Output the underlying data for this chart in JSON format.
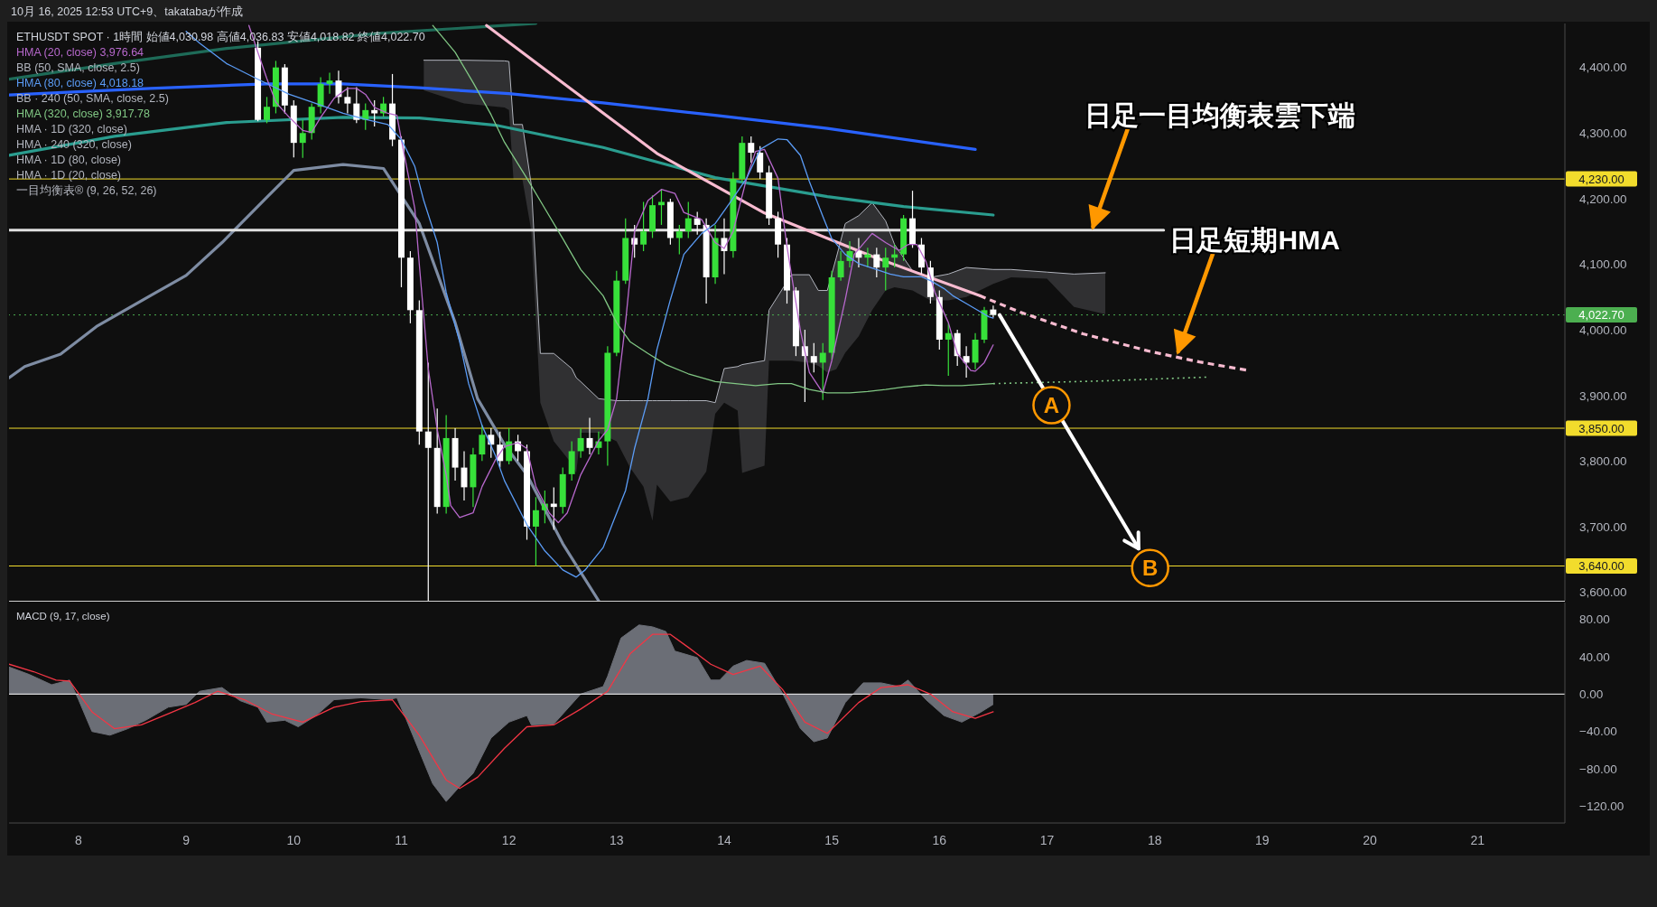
{
  "chart_data": [
    {
      "type": "candlestick",
      "title": "ETHUSDT SPOT · 1時間 始値4,030.98 高値4,036.83 安値4,018.82 終値4,022.70",
      "x": [
        "2025-10-09T16:00",
        "2025-10-09T18:00",
        "2025-10-09T20:00",
        "2025-10-09T22:00",
        "2025-10-10T00:00",
        "2025-10-10T02:00",
        "2025-10-10T04:00",
        "2025-10-10T06:00",
        "2025-10-10T08:00",
        "2025-10-10T10:00",
        "2025-10-10T12:00",
        "2025-10-10T14:00",
        "2025-10-10T16:00",
        "2025-10-10T18:00",
        "2025-10-10T20:00",
        "2025-10-10T22:00",
        "2025-10-11T00:00",
        "2025-10-11T02:00",
        "2025-10-11T04:00",
        "2025-10-11T06:00",
        "2025-10-11T08:00",
        "2025-10-11T10:00",
        "2025-10-11T12:00",
        "2025-10-11T14:00",
        "2025-10-11T16:00",
        "2025-10-11T18:00",
        "2025-10-11T20:00",
        "2025-10-11T22:00",
        "2025-10-12T00:00",
        "2025-10-12T02:00",
        "2025-10-12T04:00",
        "2025-10-12T06:00",
        "2025-10-12T08:00",
        "2025-10-12T10:00",
        "2025-10-12T12:00",
        "2025-10-12T14:00",
        "2025-10-12T16:00",
        "2025-10-12T18:00",
        "2025-10-12T20:00",
        "2025-10-12T22:00",
        "2025-10-13T00:00",
        "2025-10-13T02:00",
        "2025-10-13T04:00",
        "2025-10-13T06:00",
        "2025-10-13T08:00",
        "2025-10-13T10:00",
        "2025-10-13T12:00",
        "2025-10-13T14:00",
        "2025-10-13T16:00",
        "2025-10-13T18:00",
        "2025-10-13T20:00",
        "2025-10-13T22:00",
        "2025-10-14T00:00",
        "2025-10-14T02:00",
        "2025-10-14T04:00",
        "2025-10-14T06:00",
        "2025-10-14T08:00",
        "2025-10-14T10:00",
        "2025-10-14T12:00",
        "2025-10-14T14:00",
        "2025-10-14T16:00",
        "2025-10-14T18:00",
        "2025-10-14T20:00",
        "2025-10-14T22:00",
        "2025-10-15T00:00",
        "2025-10-15T02:00",
        "2025-10-15T04:00",
        "2025-10-15T06:00",
        "2025-10-15T08:00",
        "2025-10-15T10:00",
        "2025-10-15T12:00",
        "2025-10-15T14:00",
        "2025-10-15T16:00",
        "2025-10-15T18:00",
        "2025-10-15T20:00",
        "2025-10-15T22:00",
        "2025-10-16T00:00",
        "2025-10-16T02:00",
        "2025-10-16T04:00",
        "2025-10-16T06:00",
        "2025-10-16T08:00",
        "2025-10-16T10:00",
        "2025-10-16T12:00"
      ],
      "ohlc": [
        [
          4430,
          4440,
          4318,
          4320
        ],
        [
          4320,
          4355,
          4315,
          4340
        ],
        [
          4340,
          4410,
          4330,
          4400
        ],
        [
          4400,
          4405,
          4330,
          4342
        ],
        [
          4342,
          4350,
          4263,
          4285
        ],
        [
          4285,
          4320,
          4262,
          4300
        ],
        [
          4300,
          4345,
          4290,
          4340
        ],
        [
          4340,
          4385,
          4330,
          4375
        ],
        [
          4375,
          4392,
          4360,
          4380
        ],
        [
          4380,
          4395,
          4345,
          4355
        ],
        [
          4355,
          4370,
          4330,
          4345
        ],
        [
          4345,
          4370,
          4315,
          4320
        ],
        [
          4320,
          4345,
          4305,
          4335
        ],
        [
          4335,
          4350,
          4310,
          4330
        ],
        [
          4330,
          4355,
          4325,
          4345
        ],
        [
          4345,
          4390,
          4280,
          4290
        ],
        [
          4290,
          4295,
          4065,
          4110
        ],
        [
          4110,
          4120,
          4010,
          4030
        ],
        [
          4030,
          4045,
          3825,
          3845
        ],
        [
          3845,
          3950,
          3587,
          3820
        ],
        [
          3820,
          3880,
          3720,
          3730
        ],
        [
          3730,
          3870,
          3720,
          3835
        ],
        [
          3835,
          3850,
          3770,
          3790
        ],
        [
          3790,
          3815,
          3740,
          3760
        ],
        [
          3760,
          3820,
          3730,
          3810
        ],
        [
          3810,
          3855,
          3800,
          3840
        ],
        [
          3840,
          3850,
          3805,
          3825
        ],
        [
          3825,
          3845,
          3790,
          3800
        ],
        [
          3800,
          3850,
          3795,
          3830
        ],
        [
          3830,
          3840,
          3800,
          3815
        ],
        [
          3815,
          3825,
          3680,
          3700
        ],
        [
          3700,
          3745,
          3640,
          3725
        ],
        [
          3725,
          3755,
          3705,
          3735
        ],
        [
          3735,
          3760,
          3695,
          3730
        ],
        [
          3730,
          3790,
          3720,
          3780
        ],
        [
          3780,
          3830,
          3770,
          3815
        ],
        [
          3815,
          3850,
          3805,
          3835
        ],
        [
          3835,
          3866,
          3810,
          3820
        ],
        [
          3820,
          3845,
          3810,
          3830
        ],
        [
          3830,
          3975,
          3793,
          3965
        ],
        [
          3965,
          4090,
          3960,
          4075
        ],
        [
          4075,
          4170,
          4070,
          4140
        ],
        [
          4140,
          4160,
          4110,
          4130
        ],
        [
          4130,
          4195,
          4120,
          4150
        ],
        [
          4150,
          4205,
          4140,
          4190
        ],
        [
          4190,
          4215,
          4160,
          4195
        ],
        [
          4195,
          4200,
          4130,
          4140
        ],
        [
          4140,
          4160,
          4115,
          4150
        ],
        [
          4150,
          4195,
          4140,
          4170
        ],
        [
          4170,
          4180,
          4145,
          4160
        ],
        [
          4160,
          4170,
          4040,
          4080
        ],
        [
          4080,
          4160,
          4070,
          4140
        ],
        [
          4140,
          4170,
          4085,
          4120
        ],
        [
          4120,
          4240,
          4110,
          4230
        ],
        [
          4230,
          4295,
          4225,
          4285
        ],
        [
          4285,
          4295,
          4255,
          4270
        ],
        [
          4270,
          4280,
          4230,
          4240
        ],
        [
          4240,
          4250,
          4160,
          4170
        ],
        [
          4170,
          4180,
          4110,
          4130
        ],
        [
          4130,
          4140,
          4040,
          4060
        ],
        [
          4060,
          4065,
          3960,
          3975
        ],
        [
          3975,
          4000,
          3890,
          3960
        ],
        [
          3960,
          3980,
          3935,
          3950
        ],
        [
          3950,
          3980,
          3893,
          3965
        ],
        [
          3965,
          4090,
          3955,
          4080
        ],
        [
          4080,
          4120,
          4075,
          4105
        ],
        [
          4105,
          4135,
          4095,
          4120
        ],
        [
          4120,
          4140,
          4095,
          4110
        ],
        [
          4110,
          4125,
          4095,
          4115
        ],
        [
          4115,
          4125,
          4080,
          4095
        ],
        [
          4095,
          4125,
          4060,
          4110
        ],
        [
          4110,
          4130,
          4095,
          4115
        ],
        [
          4115,
          4175,
          4105,
          4170
        ],
        [
          4170,
          4212,
          4125,
          4130
        ],
        [
          4130,
          4140,
          4085,
          4095
        ],
        [
          4095,
          4105,
          4040,
          4050
        ],
        [
          4050,
          4060,
          3970,
          3985
        ],
        [
          3985,
          4010,
          3930,
          3995
        ],
        [
          3995,
          4000,
          3945,
          3960
        ],
        [
          3960,
          3975,
          3927,
          3950
        ],
        [
          3950,
          3995,
          3940,
          3985
        ],
        [
          3985,
          4035,
          3980,
          4030
        ],
        [
          4030.98,
          4036.83,
          4018.82,
          4022.7
        ]
      ],
      "colors": [
        "#ffffff",
        "#37e03a",
        "#37e03a",
        "#ffffff",
        "#ffffff",
        "#37e03a",
        "#37e03a",
        "#37e03a",
        "#37e03a",
        "#ffffff",
        "#ffffff",
        "#ffffff",
        "#37e03a",
        "#ffffff",
        "#37e03a",
        "#ffffff",
        "#ffffff",
        "#ffffff",
        "#ffffff",
        "#ffffff",
        "#ffffff",
        "#37e03a",
        "#ffffff",
        "#ffffff",
        "#37e03a",
        "#37e03a",
        "#ffffff",
        "#ffffff",
        "#37e03a",
        "#ffffff",
        "#ffffff",
        "#37e03a",
        "#37e03a",
        "#ffffff",
        "#37e03a",
        "#37e03a",
        "#37e03a",
        "#ffffff",
        "#37e03a",
        "#37e03a",
        "#37e03a",
        "#37e03a",
        "#ffffff",
        "#37e03a",
        "#37e03a",
        "#37e03a",
        "#ffffff",
        "#37e03a",
        "#37e03a",
        "#ffffff",
        "#ffffff",
        "#37e03a",
        "#ffffff",
        "#37e03a",
        "#37e03a",
        "#ffffff",
        "#ffffff",
        "#ffffff",
        "#ffffff",
        "#ffffff",
        "#ffffff",
        "#ffffff",
        "#ffffff",
        "#37e03a",
        "#37e03a",
        "#37e03a",
        "#37e03a",
        "#ffffff",
        "#37e03a",
        "#ffffff",
        "#37e03a",
        "#37e03a",
        "#37e03a",
        "#ffffff",
        "#ffffff",
        "#ffffff",
        "#ffffff",
        "#37e03a",
        "#ffffff",
        "#ffffff",
        "#37e03a",
        "#37e03a",
        "#ffffff"
      ],
      "series": [
        {
          "type": "line",
          "color": "#b2b5be",
          "x": [
            "2025-10-11T05:00",
            "2025-10-11T14:00",
            "2025-10-11T23:00",
            "2025-10-12T00:00",
            "2025-10-12T01:00",
            "2025-10-12T03:00",
            "2025-10-12T05:00",
            "2025-10-12T07:00",
            "2025-10-12T10:00",
            "2025-10-12T14:00",
            "2025-10-12T15:00",
            "2025-10-12T16:00",
            "2025-10-12T20:00",
            "2025-10-13T00:00",
            "2025-10-13T03:00",
            "2025-10-13T06:00",
            "2025-10-13T08:00",
            "2025-10-13T09:00",
            "2025-10-13T12:00",
            "2025-10-13T16:00",
            "2025-10-13T20:00",
            "2025-10-13T22:00",
            "2025-10-14T00:00",
            "2025-10-14T03:00",
            "2025-10-14T04:00",
            "2025-10-14T09:00",
            "2025-10-14T10:00",
            "2025-10-14T15:00",
            "2025-10-14T19:00",
            "2025-10-14T21:00",
            "2025-10-14T23:00",
            "2025-10-15T01:00",
            "2025-10-15T03:00",
            "2025-10-15T06:00",
            "2025-10-15T09:00",
            "2025-10-15T12:00",
            "2025-10-15T14:00",
            "2025-10-15T18:00",
            "2025-10-15T22:00",
            "2025-10-16T02:00",
            "2025-10-16T06:00",
            "2025-10-16T12:00",
            "2025-10-16T16:00",
            "2025-10-17T00:00",
            "2025-10-17T06:00",
            "2025-10-17T13:00"
          ],
          "values": [
            4411,
            4411,
            4410,
            4409,
            4313,
            4313,
            4220,
            3964,
            3964,
            3941,
            3927,
            3921,
            3895,
            3892,
            3892,
            3892,
            3892,
            3892,
            3892,
            3892,
            3892,
            3889,
            3941,
            3944,
            3947,
            3953,
            4030,
            4084,
            4084,
            4060,
            4060,
            4110,
            4162,
            4174,
            4194,
            4166,
            4130,
            4090,
            4080,
            4085,
            4095,
            4092,
            4092,
            4088,
            4085,
            4087
          ],
          "lower": [
            4365,
            4345,
            4339,
            4335,
            4229,
            4229,
            4150,
            3889,
            3830,
            3796,
            3782,
            3843,
            3843,
            3830,
            3790,
            3761,
            3709,
            3764,
            3738,
            3745,
            3784,
            3872,
            3889,
            3877,
            3782,
            3793,
            3953,
            3953,
            3950,
            3945,
            3935,
            3940,
            3965,
            3990,
            4030,
            4060,
            4065,
            4060,
            4045,
            4045,
            4050,
            4070,
            4080,
            4078,
            4035,
            4024
          ],
          "upper": [
            4411,
            4411,
            4410,
            4409,
            4313,
            4313,
            4220,
            3964,
            3964,
            3941,
            3927,
            3921,
            3895,
            3892,
            3892,
            3892,
            3892,
            3892,
            3892,
            3892,
            3892,
            3889,
            3941,
            3944,
            3947,
            3953,
            4030,
            4084,
            4084,
            4060,
            4060,
            4110,
            4162,
            4174,
            4194,
            4166,
            4130,
            4090,
            4080,
            4085,
            4095,
            4092,
            4092,
            4088,
            4085,
            4087
          ]
        },
        {
          "type": "line",
          "color": "#7e8ca3",
          "x": [
            "2025-10-07T08:30",
            "2025-10-07T12:00",
            "2025-10-07T20:00",
            "2025-10-08T04:00",
            "2025-10-08T16:00",
            "2025-10-09T00:00",
            "2025-10-09T08:00",
            "2025-10-09T18:00",
            "2025-10-10T00:00",
            "2025-10-10T11:00",
            "2025-10-10T20:00",
            "2025-10-11T04:00",
            "2025-10-11T12:00",
            "2025-10-11T17:00",
            "2025-10-11T23:00",
            "2025-10-12T04:00",
            "2025-10-12T12:00",
            "2025-10-12T20:00"
          ],
          "values": [
            3927,
            3944,
            3963,
            4005,
            4052,
            4083,
            4133,
            4202,
            4243,
            4252,
            4246,
            4162,
            4011,
            3895,
            3825,
            3779,
            3674,
            3587
          ]
        },
        {
          "type": "line",
          "color": "#1e6b58",
          "x": [
            "2025-10-07T08:30",
            "2025-10-08T08:00",
            "2025-10-09T09:00",
            "2025-10-10T19:00",
            "2025-10-11T23:00",
            "2025-10-12T06:00"
          ],
          "values": [
            4382,
            4406,
            4429,
            4452,
            4464,
            4467
          ]
        },
        {
          "type": "line",
          "color": "#2962ff",
          "x": [
            "2025-10-07T08:30",
            "2025-10-08T16:00",
            "2025-10-09T18:00",
            "2025-10-10T11:00",
            "2025-10-11T04:00",
            "2025-10-12T00:00",
            "2025-10-12T21:00",
            "2025-10-13T22:00",
            "2025-10-14T23:00",
            "2025-10-16T08:00"
          ],
          "values": [
            4358,
            4368,
            4375,
            4375,
            4369,
            4360,
            4346,
            4327,
            4307,
            4275
          ]
        },
        {
          "type": "line",
          "color": "#2a9d8f",
          "x": [
            "2025-10-07T08:30",
            "2025-10-08T08:00",
            "2025-10-09T09:00",
            "2025-10-10T11:00",
            "2025-10-11T04:00",
            "2025-10-11T21:00",
            "2025-10-12T21:00",
            "2025-10-13T22:00",
            "2025-10-14T23:00",
            "2025-10-15T16:00",
            "2025-10-16T12:00"
          ],
          "values": [
            4266,
            4295,
            4316,
            4324,
            4323,
            4312,
            4278,
            4232,
            4203,
            4188,
            4175
          ]
        },
        {
          "type": "line",
          "color": "#e0e0e0",
          "x": [
            "2025-10-07T08:30",
            "2025-10-18T02:00"
          ],
          "values": [
            4152,
            4152
          ]
        },
        {
          "type": "line",
          "color": "#f8bbd0",
          "x": [
            "2025-10-11T19:00",
            "2025-10-12T09:00",
            "2025-10-13T09:00",
            "2025-10-14T09:00",
            "2025-10-15T09:00",
            "2025-10-16T09:00"
          ],
          "values": [
            4464,
            4392,
            4269,
            4178,
            4112,
            4052
          ]
        },
        {
          "type": "line",
          "color": "#f8bbd0",
          "line_style": "dashed",
          "x": [
            "2025-10-16T09:00",
            "2025-10-16T18:00",
            "2025-10-17T08:00",
            "2025-10-17T23:00",
            "2025-10-18T10:00",
            "2025-10-18T21:00"
          ],
          "values": [
            4052,
            4027,
            3994,
            3967,
            3951,
            3938
          ]
        },
        {
          "type": "line",
          "name": "HMA (20, close) 3,976.64",
          "color": "#b768cc",
          "x": [
            "2025-10-09T14:00",
            "2025-10-09T16:00",
            "2025-10-09T18:00",
            "2025-10-09T20:00",
            "2025-10-09T23:00",
            "2025-10-10T02:00",
            "2025-10-10T04:00",
            "2025-10-10T06:00",
            "2025-10-10T09:00",
            "2025-10-10T12:00",
            "2025-10-10T14:00",
            "2025-10-10T16:00",
            "2025-10-10T18:00",
            "2025-10-10T21:00",
            "2025-10-10T23:00",
            "2025-10-11T00:00",
            "2025-10-11T03:00",
            "2025-10-11T04:00",
            "2025-10-11T06:00",
            "2025-10-11T08:00",
            "2025-10-11T10:00",
            "2025-10-11T11:00",
            "2025-10-11T13:00",
            "2025-10-11T16:00",
            "2025-10-11T18:00",
            "2025-10-11T21:00",
            "2025-10-11T23:00",
            "2025-10-12T02:00",
            "2025-10-12T04:00",
            "2025-10-12T06:00",
            "2025-10-12T09:00",
            "2025-10-12T11:00",
            "2025-10-12T13:00",
            "2025-10-12T16:00",
            "2025-10-12T20:00",
            "2025-10-12T22:00",
            "2025-10-13T00:00",
            "2025-10-13T02:00",
            "2025-10-13T04:00",
            "2025-10-13T07:00",
            "2025-10-13T10:00",
            "2025-10-13T13:00",
            "2025-10-13T15:00",
            "2025-10-13T19:00",
            "2025-10-13T22:00",
            "2025-10-14T00:00",
            "2025-10-14T02:00",
            "2025-10-14T05:00",
            "2025-10-14T07:00",
            "2025-10-14T09:00",
            "2025-10-14T12:00",
            "2025-10-14T14:00",
            "2025-10-14T17:00",
            "2025-10-14T19:00",
            "2025-10-14T22:00",
            "2025-10-15T00:00",
            "2025-10-15T03:00",
            "2025-10-15T05:00",
            "2025-10-15T09:00",
            "2025-10-15T12:00",
            "2025-10-15T15:00",
            "2025-10-15T17:00",
            "2025-10-15T19:00",
            "2025-10-15T21:00",
            "2025-10-15T23:00",
            "2025-10-16T02:00",
            "2025-10-16T04:00",
            "2025-10-16T07:00",
            "2025-10-16T08:00",
            "2025-10-16T10:00",
            "2025-10-16T12:00"
          ],
          "values": [
            4464,
            4423,
            4383,
            4347,
            4324,
            4304,
            4301,
            4324,
            4353,
            4368,
            4368,
            4359,
            4339,
            4330,
            4327,
            4290,
            4185,
            4100,
            3941,
            3848,
            3779,
            3732,
            3714,
            3721,
            3761,
            3802,
            3822,
            3828,
            3819,
            3761,
            3721,
            3706,
            3721,
            3779,
            3831,
            3848,
            3895,
            4011,
            4150,
            4197,
            4214,
            4208,
            4179,
            4168,
            4133,
            4124,
            4150,
            4231,
            4272,
            4275,
            4231,
            4127,
            3999,
            3935,
            3904,
            3953,
            4046,
            4115,
            4147,
            4133,
            4121,
            4130,
            4130,
            4104,
            4057,
            4011,
            3964,
            3938,
            3937,
            3950,
            3977
          ]
        },
        {
          "type": "line",
          "name": "HMA (80, close) 4,018.18",
          "color": "#5b9cf6",
          "x": [
            "2025-10-09T00:00",
            "2025-10-09T03:00",
            "2025-10-09T09:00",
            "2025-10-09T16:00",
            "2025-10-09T23:00",
            "2025-10-10T05:00",
            "2025-10-10T11:00",
            "2025-10-10T16:00",
            "2025-10-10T21:00",
            "2025-10-11T00:00",
            "2025-10-11T03:00",
            "2025-10-11T05:00",
            "2025-10-11T08:00",
            "2025-10-11T10:00",
            "2025-10-11T13:00",
            "2025-10-11T15:00",
            "2025-10-11T18:00",
            "2025-10-11T21:00",
            "2025-10-11T23:00",
            "2025-10-12T04:00",
            "2025-10-12T08:00",
            "2025-10-12T12:00",
            "2025-10-12T15:00",
            "2025-10-12T17:00",
            "2025-10-12T21:00",
            "2025-10-12T23:00",
            "2025-10-13T02:00",
            "2025-10-13T04:00",
            "2025-10-13T07:00",
            "2025-10-13T09:00",
            "2025-10-13T12:00",
            "2025-10-13T15:00",
            "2025-10-13T19:00",
            "2025-10-13T22:00",
            "2025-10-14T01:00",
            "2025-10-14T05:00",
            "2025-10-14T08:00",
            "2025-10-14T12:00",
            "2025-10-14T14:00",
            "2025-10-14T17:00",
            "2025-10-14T19:00",
            "2025-10-14T22:00",
            "2025-10-15T00:00",
            "2025-10-15T03:00",
            "2025-10-15T06:00",
            "2025-10-15T10:00",
            "2025-10-15T13:00",
            "2025-10-15T16:00",
            "2025-10-15T20:00",
            "2025-10-15T22:00",
            "2025-10-16T01:00",
            "2025-10-16T03:00",
            "2025-10-16T06:00",
            "2025-10-16T09:00",
            "2025-10-16T11:00",
            "2025-10-16T12:00"
          ],
          "values": [
            4455,
            4437,
            4406,
            4382,
            4359,
            4345,
            4330,
            4321,
            4313,
            4290,
            4249,
            4197,
            4133,
            4057,
            3982,
            3918,
            3854,
            3808,
            3770,
            3703,
            3663,
            3634,
            3623,
            3634,
            3668,
            3703,
            3755,
            3819,
            3895,
            3970,
            4046,
            4115,
            4147,
            4162,
            4191,
            4231,
            4275,
            4291,
            4290,
            4266,
            4226,
            4173,
            4139,
            4115,
            4101,
            4092,
            4085,
            4081,
            4081,
            4075,
            4063,
            4052,
            4040,
            4028,
            4020,
            4018
          ]
        },
        {
          "type": "line",
          "name": "HMA (320, close) 3,917.78",
          "color": "#81c784",
          "x": [
            "2025-10-11T07:00",
            "2025-10-11T12:00",
            "2025-10-11T16:00",
            "2025-10-11T20:00",
            "2025-10-11T23:00",
            "2025-10-12T04:00",
            "2025-10-12T08:00",
            "2025-10-12T12:00",
            "2025-10-12T16:00",
            "2025-10-12T21:00",
            "2025-10-13T00:00",
            "2025-10-13T03:00",
            "2025-10-13T07:00",
            "2025-10-13T11:00",
            "2025-10-13T16:00",
            "2025-10-13T22:00",
            "2025-10-14T07:00",
            "2025-10-14T12:00",
            "2025-10-14T15:00",
            "2025-10-14T19:00",
            "2025-10-14T23:00",
            "2025-10-15T04:00",
            "2025-10-15T08:00",
            "2025-10-15T12:00",
            "2025-10-15T16:00",
            "2025-10-15T21:00",
            "2025-10-16T01:00",
            "2025-10-16T05:00",
            "2025-10-16T12:00"
          ],
          "values": [
            4464,
            4423,
            4377,
            4328,
            4286,
            4231,
            4185,
            4139,
            4092,
            4052,
            4011,
            3982,
            3964,
            3947,
            3933,
            3921,
            3915,
            3918,
            3918,
            3909,
            3904,
            3904,
            3906,
            3909,
            3913,
            3916,
            3915,
            3915,
            3918
          ]
        },
        {
          "type": "line",
          "color": "#81c784",
          "line_style": "dotted",
          "x": [
            "2025-10-16T12:00",
            "2025-10-17T12:00",
            "2025-10-18T12:00"
          ],
          "values": [
            3918,
            3922,
            3928
          ]
        }
      ],
      "xlim": [
        "2025-10-07T08:30",
        "2025-10-21T19:30"
      ],
      "ylim": [
        3587,
        4467
      ],
      "yticks": [
        {
          "value": 3600,
          "label": "3,600.00"
        },
        {
          "value": 3700,
          "label": "3,700.00"
        },
        {
          "value": 3800,
          "label": "3,800.00"
        },
        {
          "value": 3900,
          "label": "3,900.00"
        },
        {
          "value": 4000,
          "label": "4,000.00"
        },
        {
          "value": 4100,
          "label": "4,100.00"
        },
        {
          "value": 4200,
          "label": "4,200.00"
        },
        {
          "value": 4300,
          "label": "4,300.00"
        },
        {
          "value": 4400,
          "label": "4,400.00"
        }
      ],
      "tick_labels": "y",
      "legend": "top left",
      "ref_lines": [
        {
          "axis": "y",
          "value": 4230,
          "label": "4,230.00",
          "color": "#f2dc2c"
        },
        {
          "axis": "y",
          "value": 3850,
          "label": "3,850.00",
          "color": "#f2dc2c"
        },
        {
          "axis": "y",
          "value": 3640,
          "label": "3,640.00",
          "color": "#f2dc2c"
        },
        {
          "axis": "y",
          "value": 4022.7,
          "label": "4,022.70",
          "color": "#4caf50",
          "line_style": "dotted"
        }
      ],
      "annotations": [
        "10月 16, 2025 12:53 UTC+9、takatabaが作成",
        "BB (50, SMA, close, 2.5)",
        "BB · 240 (50, SMA, close, 2.5)",
        "HMA · 1D (320, close)",
        "HMA · 240 (320, close)",
        "HMA · 1D (80, close)",
        "HMA · 1D (20, close)",
        "一目均衡表® (9, 26, 52, 26)",
        {
          "text": "日足一目均衡表雲下端",
          "x": "2025-10-17T10:00",
          "y": 4152
        },
        {
          "text": "日足短期HMA",
          "x": "2025-10-18T05:00",
          "y": 3962
        },
        {
          "text": "A",
          "x": "2025-10-17T01:00",
          "y": 3885
        },
        {
          "text": "B",
          "x": "2025-10-17T23:00",
          "y": 3637
        }
      ]
    },
    {
      "type": "line",
      "title": "MACD (9, 17, close)",
      "series": [
        {
          "type": "area",
          "color": "#6b6e76",
          "x": [
            "2025-10-07T08:30",
            "2025-10-07T13:00",
            "2025-10-07T18:00",
            "2025-10-07T22:00",
            "2025-10-08T00:00",
            "2025-10-08T03:00",
            "2025-10-08T07:00",
            "2025-10-08T11:00",
            "2025-10-08T15:00",
            "2025-10-08T20:00",
            "2025-10-09T00:00",
            "2025-10-09T03:00",
            "2025-10-09T08:00",
            "2025-10-09T12:00",
            "2025-10-09T16:00",
            "2025-10-09T18:00",
            "2025-10-09T22:00",
            "2025-10-10T01:00",
            "2025-10-10T05:00",
            "2025-10-10T09:00",
            "2025-10-10T15:00",
            "2025-10-10T21:00",
            "2025-10-10T23:00",
            "2025-10-11T01:00",
            "2025-10-11T04:00",
            "2025-10-11T07:00",
            "2025-10-11T10:00",
            "2025-10-11T13:00",
            "2025-10-11T16:00",
            "2025-10-11T20:00",
            "2025-10-12T00:00",
            "2025-10-12T04:00",
            "2025-10-12T05:00",
            "2025-10-12T10:00",
            "2025-10-12T16:00",
            "2025-10-12T21:00",
            "2025-10-12T22:00",
            "2025-10-13T01:00",
            "2025-10-13T05:00",
            "2025-10-13T08:00",
            "2025-10-13T11:00",
            "2025-10-13T13:00",
            "2025-10-13T18:00",
            "2025-10-13T21:00",
            "2025-10-13T23:00",
            "2025-10-14T02:00",
            "2025-10-14T05:00",
            "2025-10-14T09:00",
            "2025-10-14T13:00",
            "2025-10-14T17:00",
            "2025-10-14T20:00",
            "2025-10-14T23:00",
            "2025-10-15T03:00",
            "2025-10-15T07:00",
            "2025-10-15T11:00",
            "2025-10-15T15:00",
            "2025-10-15T17:00",
            "2025-10-15T21:00",
            "2025-10-16T01:00",
            "2025-10-16T05:00",
            "2025-10-16T09:00",
            "2025-10-16T12:00"
          ],
          "values": [
            29,
            21,
            10,
            15,
            -6,
            -40,
            -44,
            -37,
            -28,
            -14,
            -11,
            3,
            7,
            -7,
            -14,
            -30,
            -28,
            -35,
            -23,
            -6,
            -4,
            -6,
            -4,
            -26,
            -61,
            -96,
            -115,
            -99,
            -85,
            -47,
            -30,
            -23,
            -33,
            -32,
            0,
            8,
            19,
            60,
            74,
            72,
            67,
            46,
            39,
            15,
            15,
            30,
            36,
            33,
            1,
            -37,
            -51,
            -47,
            -9,
            12,
            12,
            8,
            15,
            -6,
            -23,
            -30,
            -20,
            -11
          ]
        },
        {
          "color": "#f23645",
          "x": [
            "2025-10-07T08:30",
            "2025-10-07T14:00",
            "2025-10-07T19:00",
            "2025-10-07T22:00",
            "2025-10-08T03:00",
            "2025-10-08T08:00",
            "2025-10-08T14:00",
            "2025-10-08T20:00",
            "2025-10-09T02:00",
            "2025-10-09T07:00",
            "2025-10-09T13:00",
            "2025-10-09T19:00",
            "2025-10-10T02:00",
            "2025-10-10T09:00",
            "2025-10-10T15:00",
            "2025-10-10T22:00",
            "2025-10-11T04:00",
            "2025-10-11T10:00",
            "2025-10-11T13:00",
            "2025-10-11T17:00",
            "2025-10-11T23:00",
            "2025-10-12T04:00",
            "2025-10-12T10:00",
            "2025-10-12T16:00",
            "2025-10-12T22:00",
            "2025-10-13T03:00",
            "2025-10-13T08:00",
            "2025-10-13T12:00",
            "2025-10-13T16:00",
            "2025-10-13T21:00",
            "2025-10-14T02:00",
            "2025-10-14T08:00",
            "2025-10-14T13:00",
            "2025-10-14T18:00",
            "2025-10-14T23:00",
            "2025-10-15T06:00",
            "2025-10-15T11:00",
            "2025-10-15T17:00",
            "2025-10-15T22:00",
            "2025-10-16T03:00",
            "2025-10-16T08:00",
            "2025-10-16T12:00"
          ],
          "values": [
            32,
            24,
            15,
            14,
            -19,
            -37,
            -33,
            -21,
            -9,
            3,
            -6,
            -21,
            -30,
            -14,
            -8,
            -6,
            -44,
            -92,
            -101,
            -89,
            -58,
            -35,
            -33,
            -16,
            3,
            43,
            64,
            64,
            50,
            32,
            21,
            30,
            5,
            -30,
            -42,
            -9,
            7,
            10,
            0,
            -19,
            -26,
            -19
          ]
        }
      ],
      "xlim": [
        "2025-10-07T08:30",
        "2025-10-21T19:30"
      ],
      "xticks": [
        {
          "value": "2025-10-08",
          "label": "8"
        },
        {
          "value": "2025-10-09",
          "label": "9"
        },
        {
          "value": "2025-10-10",
          "label": "10"
        },
        {
          "value": "2025-10-11",
          "label": "11"
        },
        {
          "value": "2025-10-12",
          "label": "12"
        },
        {
          "value": "2025-10-13",
          "label": "13"
        },
        {
          "value": "2025-10-14",
          "label": "14"
        },
        {
          "value": "2025-10-15",
          "label": "15"
        },
        {
          "value": "2025-10-16",
          "label": "16"
        },
        {
          "value": "2025-10-17",
          "label": "17"
        },
        {
          "value": "2025-10-18",
          "label": "18"
        },
        {
          "value": "2025-10-19",
          "label": "19"
        },
        {
          "value": "2025-10-20",
          "label": "20"
        },
        {
          "value": "2025-10-21",
          "label": "21"
        }
      ],
      "ylim": [
        -138,
        98
      ],
      "yticks": [
        {
          "value": -120,
          "label": "−120.00"
        },
        {
          "value": -80,
          "label": "−80.00"
        },
        {
          "value": -40,
          "label": "−40.00"
        },
        {
          "value": 0,
          "label": "0.00"
        },
        {
          "value": 40,
          "label": "40.00"
        },
        {
          "value": 80,
          "label": "80.00"
        }
      ],
      "ref_lines": [
        {
          "axis": "y",
          "value": 0,
          "color": "#ffffff"
        }
      ]
    }
  ]
}
